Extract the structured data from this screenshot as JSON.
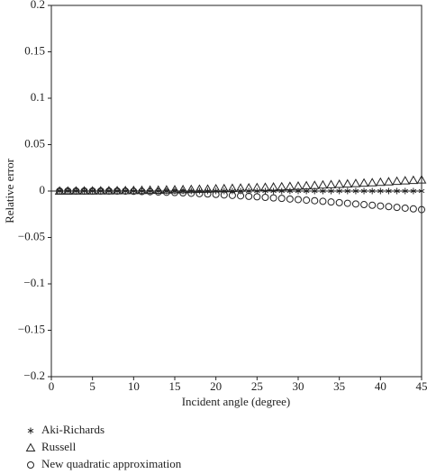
{
  "chart_data": {
    "type": "scatter",
    "x_label": "Incident angle (degree)",
    "y_label": "Relative error",
    "x": [
      1,
      2,
      3,
      4,
      5,
      6,
      7,
      8,
      9,
      10,
      11,
      12,
      13,
      14,
      15,
      16,
      17,
      18,
      19,
      20,
      21,
      22,
      23,
      24,
      25,
      26,
      27,
      28,
      29,
      30,
      31,
      32,
      33,
      34,
      35,
      36,
      37,
      38,
      39,
      40,
      41,
      42,
      43,
      44,
      45
    ],
    "series": [
      {
        "name": "Aki-Richards",
        "color": "#222222",
        "marker": "star",
        "values": [
          0,
          0,
          0,
          0,
          0,
          0,
          0,
          0,
          0,
          0,
          0,
          0,
          0,
          0,
          0,
          0,
          0,
          0,
          0,
          0,
          0,
          0,
          0,
          0,
          0,
          0,
          0,
          0,
          0,
          0,
          0,
          0,
          0,
          0,
          0,
          0,
          0,
          0,
          0,
          0,
          0,
          0,
          0,
          0,
          0
        ]
      },
      {
        "name": "Russell",
        "color": "#222222",
        "marker": "triangle",
        "values": [
          0.0,
          0.0,
          0.0001,
          0.0001,
          0.0001,
          0.0002,
          0.0003,
          0.0004,
          0.0005,
          0.0006,
          0.0007,
          0.0009,
          0.001,
          0.0012,
          0.0013,
          0.0015,
          0.0017,
          0.0019,
          0.0021,
          0.0024,
          0.0026,
          0.0029,
          0.0031,
          0.0034,
          0.0037,
          0.004,
          0.0043,
          0.0046,
          0.005,
          0.0053,
          0.0057,
          0.0061,
          0.0065,
          0.0069,
          0.0073,
          0.0077,
          0.0081,
          0.0086,
          0.009,
          0.0095,
          0.01,
          0.0105,
          0.011,
          0.0115,
          0.012
        ]
      },
      {
        "name": "New quadratic approximation",
        "color": "#222222",
        "marker": "circle",
        "values": [
          0,
          0,
          0,
          0,
          0,
          0,
          0,
          0,
          -0.0001,
          -0.0003,
          -0.0005,
          -0.0007,
          -0.001,
          -0.0013,
          -0.0016,
          -0.002,
          -0.0024,
          -0.0028,
          -0.0032,
          -0.0037,
          -0.0042,
          -0.0047,
          -0.0052,
          -0.0057,
          -0.0062,
          -0.0068,
          -0.0074,
          -0.0079,
          -0.0086,
          -0.0092,
          -0.0098,
          -0.0104,
          -0.0111,
          -0.0118,
          -0.0125,
          -0.0132,
          -0.0139,
          -0.0146,
          -0.0153,
          -0.0161,
          -0.0168,
          -0.0176,
          -0.0184,
          -0.0192,
          -0.02
        ]
      }
    ],
    "xlim": [
      0,
      45
    ],
    "xticks": [
      0,
      5,
      10,
      15,
      20,
      25,
      30,
      35,
      40,
      45
    ],
    "ylim": [
      -0.2,
      0.2
    ],
    "yticks": [
      0.2,
      0.15,
      0.1,
      0.05,
      0,
      {
        "value": -0.05,
        "label": "−0.05"
      },
      {
        "value": -0.1,
        "label": "−0.1"
      },
      {
        "value": -0.15,
        "label": "−0.15"
      },
      {
        "value": -0.2,
        "label": "−0.2"
      }
    ],
    "zero_line": true,
    "grid": false,
    "legend": "bottom-left"
  }
}
